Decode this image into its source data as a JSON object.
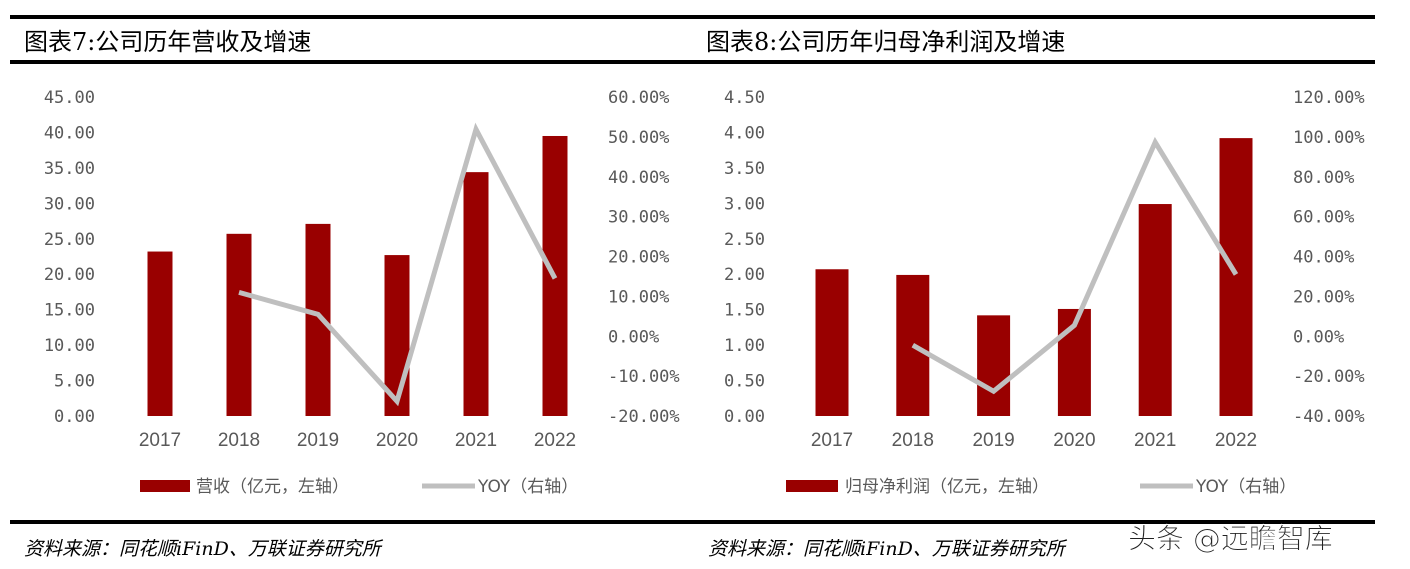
{
  "watermark": "头条 @远瞻智库",
  "colors": {
    "bar": "#990000",
    "line": "#BFBFBF",
    "axis_text": "#595959"
  },
  "chart_data": [
    {
      "type": "bar+line",
      "title": "图表7:公司历年营收及增速",
      "categories": [
        "2017",
        "2018",
        "2019",
        "2020",
        "2021",
        "2022"
      ],
      "series": [
        {
          "name": "营收（亿元，左轴）",
          "type": "bar",
          "axis": "left",
          "values": [
            23.2,
            25.7,
            27.1,
            22.7,
            34.4,
            39.5
          ]
        },
        {
          "name": "YOY（右轴）",
          "type": "line",
          "axis": "right",
          "values": [
            null,
            11.0,
            5.5,
            -16.3,
            51.9,
            14.5
          ]
        }
      ],
      "left_axis": {
        "ylim": [
          0,
          45
        ],
        "ticks": [
          "0.00",
          "5.00",
          "10.00",
          "15.00",
          "20.00",
          "25.00",
          "30.00",
          "35.00",
          "40.00",
          "45.00"
        ]
      },
      "right_axis": {
        "ylim": [
          -20,
          60
        ],
        "unit": "%",
        "ticks": [
          "-20.00%",
          "-10.00%",
          "0.00%",
          "10.00%",
          "20.00%",
          "30.00%",
          "40.00%",
          "50.00%",
          "60.00%"
        ]
      },
      "grid": false,
      "legend": "bottom",
      "source": "资料来源：同花顺iFinD、万联证券研究所"
    },
    {
      "type": "bar+line",
      "title": "图表8:公司历年归母净利润及增速",
      "categories": [
        "2017",
        "2018",
        "2019",
        "2020",
        "2021",
        "2022"
      ],
      "series": [
        {
          "name": "归母净利润（亿元，左轴）",
          "type": "bar",
          "axis": "left",
          "values": [
            2.07,
            1.99,
            1.42,
            1.51,
            2.99,
            3.92
          ]
        },
        {
          "name": "YOY（右轴）",
          "type": "line",
          "axis": "right",
          "values": [
            null,
            -4.5,
            -27.6,
            5.5,
            97.3,
            31.0
          ]
        }
      ],
      "left_axis": {
        "ylim": [
          0,
          4.5
        ],
        "ticks": [
          "0.00",
          "0.50",
          "1.00",
          "1.50",
          "2.00",
          "2.50",
          "3.00",
          "3.50",
          "4.00",
          "4.50"
        ]
      },
      "right_axis": {
        "ylim": [
          -40,
          120
        ],
        "unit": "%",
        "ticks": [
          "-40.00%",
          "-20.00%",
          "0.00%",
          "20.00%",
          "40.00%",
          "60.00%",
          "80.00%",
          "100.00%",
          "120.00%"
        ]
      },
      "grid": false,
      "legend": "bottom",
      "source": "资料来源：同花顺iFinD、万联证券研究所"
    }
  ]
}
